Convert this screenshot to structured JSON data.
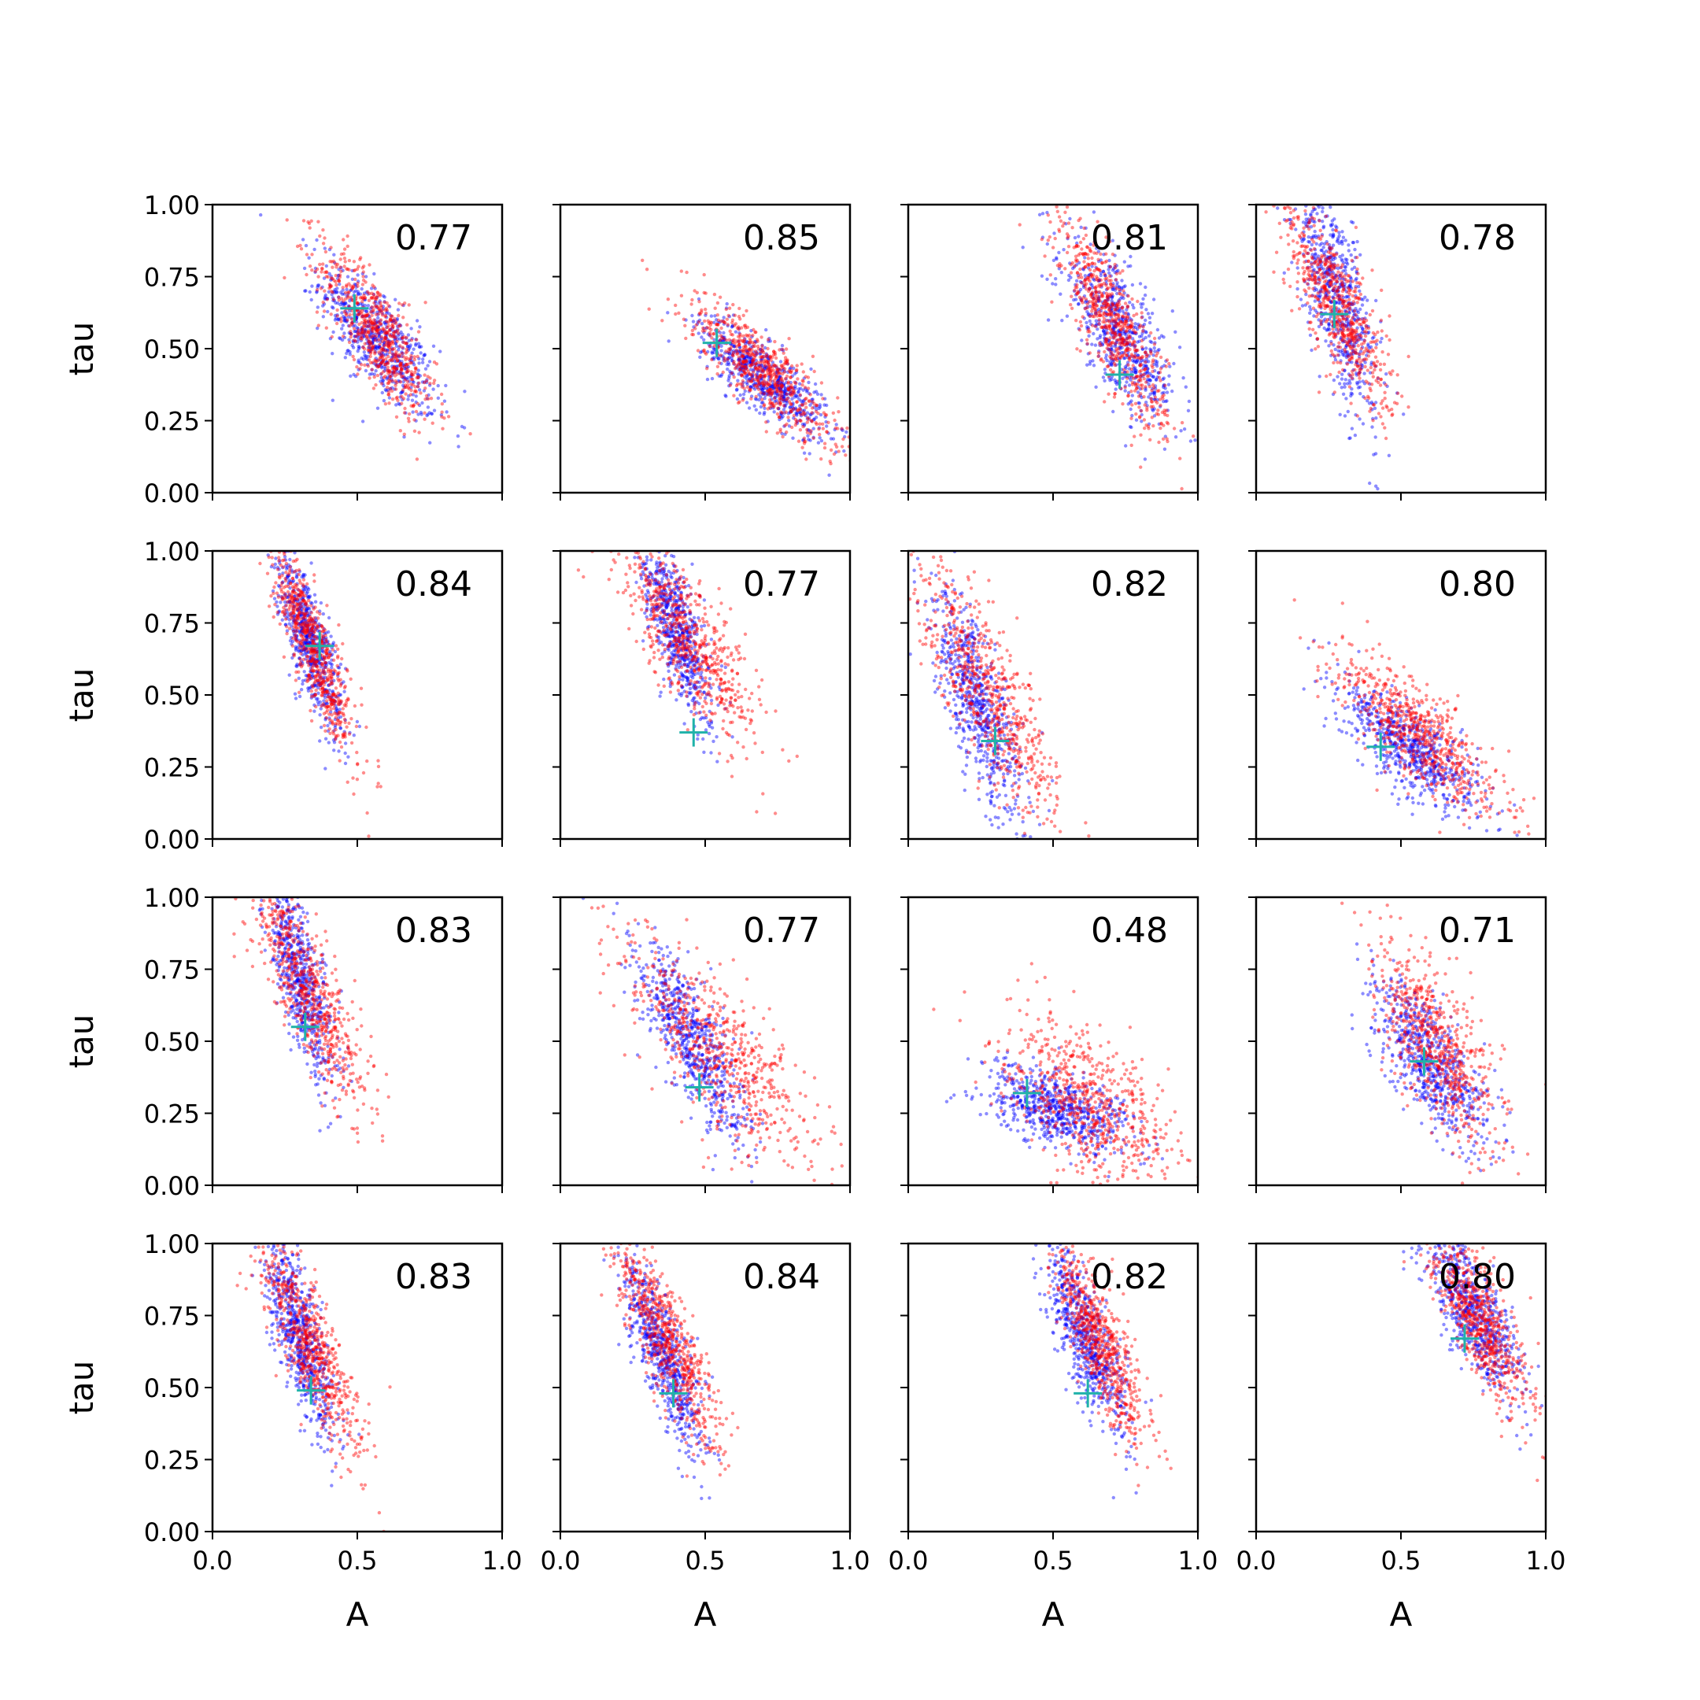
{
  "figure": {
    "x_label": "A",
    "y_label": "tau",
    "x_ticks": [
      "0.0",
      "0.5",
      "1.0"
    ],
    "y_ticks": [
      "0.00",
      "0.25",
      "0.50",
      "0.75",
      "1.00"
    ],
    "colors": {
      "red": "#ff0000",
      "blue": "#0000ff",
      "marker": "#20b2aa",
      "axis": "#000000"
    }
  },
  "chart_data": [
    {
      "type": "scatter",
      "annotation": "0.77",
      "xlim": [
        0,
        1
      ],
      "ylim": [
        0,
        1
      ],
      "marker": {
        "x": 0.49,
        "y": 0.64
      },
      "clouds": {
        "red": {
          "cx": 0.57,
          "cy": 0.55,
          "sx": 0.1,
          "sy": 0.15,
          "rho": -0.8
        },
        "blue": {
          "cx": 0.57,
          "cy": 0.53,
          "sx": 0.1,
          "sy": 0.13,
          "rho": -0.75
        }
      }
    },
    {
      "type": "scatter",
      "annotation": "0.85",
      "xlim": [
        0,
        1
      ],
      "ylim": [
        0,
        1
      ],
      "marker": {
        "x": 0.54,
        "y": 0.52
      },
      "clouds": {
        "red": {
          "cx": 0.7,
          "cy": 0.42,
          "sx": 0.13,
          "sy": 0.13,
          "rho": -0.85
        },
        "blue": {
          "cx": 0.7,
          "cy": 0.4,
          "sx": 0.11,
          "sy": 0.1,
          "rho": -0.8
        }
      }
    },
    {
      "type": "scatter",
      "annotation": "0.81",
      "xlim": [
        0,
        1
      ],
      "ylim": [
        0,
        1
      ],
      "marker": {
        "x": 0.73,
        "y": 0.41
      },
      "clouds": {
        "red": {
          "cx": 0.71,
          "cy": 0.58,
          "sx": 0.09,
          "sy": 0.17,
          "rho": -0.81
        },
        "blue": {
          "cx": 0.73,
          "cy": 0.55,
          "sx": 0.1,
          "sy": 0.16,
          "rho": -0.75
        }
      }
    },
    {
      "type": "scatter",
      "annotation": "0.78",
      "xlim": [
        0,
        1
      ],
      "ylim": [
        0,
        1
      ],
      "marker": {
        "x": 0.27,
        "y": 0.62
      },
      "clouds": {
        "red": {
          "cx": 0.28,
          "cy": 0.65,
          "sx": 0.09,
          "sy": 0.18,
          "rho": -0.78
        },
        "blue": {
          "cx": 0.28,
          "cy": 0.68,
          "sx": 0.07,
          "sy": 0.2,
          "rho": -0.7
        }
      }
    },
    {
      "type": "scatter",
      "annotation": "0.84",
      "xlim": [
        0,
        1
      ],
      "ylim": [
        0,
        1
      ],
      "marker": {
        "x": 0.37,
        "y": 0.67
      },
      "clouds": {
        "red": {
          "cx": 0.35,
          "cy": 0.66,
          "sx": 0.07,
          "sy": 0.17,
          "rho": -0.84
        },
        "blue": {
          "cx": 0.33,
          "cy": 0.7,
          "sx": 0.06,
          "sy": 0.16,
          "rho": -0.8
        }
      }
    },
    {
      "type": "scatter",
      "annotation": "0.77",
      "xlim": [
        0,
        1
      ],
      "ylim": [
        0,
        1
      ],
      "marker": {
        "x": 0.46,
        "y": 0.37
      },
      "clouds": {
        "red": {
          "cx": 0.45,
          "cy": 0.68,
          "sx": 0.12,
          "sy": 0.17,
          "rho": -0.77
        },
        "blue": {
          "cx": 0.4,
          "cy": 0.73,
          "sx": 0.06,
          "sy": 0.16,
          "rho": -0.75
        }
      }
    },
    {
      "type": "scatter",
      "annotation": "0.82",
      "xlim": [
        0,
        1
      ],
      "ylim": [
        0,
        1
      ],
      "marker": {
        "x": 0.3,
        "y": 0.34
      },
      "clouds": {
        "red": {
          "cx": 0.28,
          "cy": 0.5,
          "sx": 0.12,
          "sy": 0.22,
          "rho": -0.82
        },
        "blue": {
          "cx": 0.24,
          "cy": 0.46,
          "sx": 0.08,
          "sy": 0.2,
          "rho": -0.75
        }
      }
    },
    {
      "type": "scatter",
      "annotation": "0.80",
      "xlim": [
        0,
        1
      ],
      "ylim": [
        0,
        1
      ],
      "marker": {
        "x": 0.43,
        "y": 0.32
      },
      "clouds": {
        "red": {
          "cx": 0.57,
          "cy": 0.36,
          "sx": 0.14,
          "sy": 0.14,
          "rho": -0.8
        },
        "blue": {
          "cx": 0.54,
          "cy": 0.31,
          "sx": 0.12,
          "sy": 0.11,
          "rho": -0.75
        }
      }
    },
    {
      "type": "scatter",
      "annotation": "0.83",
      "xlim": [
        0,
        1
      ],
      "ylim": [
        0,
        1
      ],
      "marker": {
        "x": 0.32,
        "y": 0.55
      },
      "clouds": {
        "red": {
          "cx": 0.33,
          "cy": 0.68,
          "sx": 0.1,
          "sy": 0.2,
          "rho": -0.83
        },
        "blue": {
          "cx": 0.3,
          "cy": 0.72,
          "sx": 0.06,
          "sy": 0.18,
          "rho": -0.75
        }
      }
    },
    {
      "type": "scatter",
      "annotation": "0.77",
      "xlim": [
        0,
        1
      ],
      "ylim": [
        0,
        1
      ],
      "marker": {
        "x": 0.48,
        "y": 0.34
      },
      "clouds": {
        "red": {
          "cx": 0.56,
          "cy": 0.44,
          "sx": 0.17,
          "sy": 0.2,
          "rho": -0.77
        },
        "blue": {
          "cx": 0.45,
          "cy": 0.5,
          "sx": 0.1,
          "sy": 0.18,
          "rho": -0.8
        }
      }
    },
    {
      "type": "scatter",
      "annotation": "0.48",
      "xlim": [
        0,
        1
      ],
      "ylim": [
        0,
        1
      ],
      "marker": {
        "x": 0.41,
        "y": 0.32
      },
      "clouds": {
        "red": {
          "cx": 0.62,
          "cy": 0.29,
          "sx": 0.15,
          "sy": 0.14,
          "rho": -0.55
        },
        "blue": {
          "cx": 0.52,
          "cy": 0.26,
          "sx": 0.13,
          "sy": 0.07,
          "rho": -0.4
        }
      }
    },
    {
      "type": "scatter",
      "annotation": "0.71",
      "xlim": [
        0,
        1
      ],
      "ylim": [
        0,
        1
      ],
      "marker": {
        "x": 0.58,
        "y": 0.43
      },
      "clouds": {
        "red": {
          "cx": 0.63,
          "cy": 0.48,
          "sx": 0.11,
          "sy": 0.18,
          "rho": -0.71
        },
        "blue": {
          "cx": 0.6,
          "cy": 0.43,
          "sx": 0.1,
          "sy": 0.14,
          "rho": -0.7
        }
      }
    },
    {
      "type": "scatter",
      "annotation": "0.83",
      "xlim": [
        0,
        1
      ],
      "ylim": [
        0,
        1
      ],
      "marker": {
        "x": 0.34,
        "y": 0.49
      },
      "clouds": {
        "red": {
          "cx": 0.33,
          "cy": 0.66,
          "sx": 0.09,
          "sy": 0.19,
          "rho": -0.83
        },
        "blue": {
          "cx": 0.3,
          "cy": 0.68,
          "sx": 0.06,
          "sy": 0.17,
          "rho": -0.75
        }
      }
    },
    {
      "type": "scatter",
      "annotation": "0.84",
      "xlim": [
        0,
        1
      ],
      "ylim": [
        0,
        1
      ],
      "marker": {
        "x": 0.39,
        "y": 0.48
      },
      "clouds": {
        "red": {
          "cx": 0.37,
          "cy": 0.65,
          "sx": 0.09,
          "sy": 0.18,
          "rho": -0.84
        },
        "blue": {
          "cx": 0.35,
          "cy": 0.62,
          "sx": 0.07,
          "sy": 0.17,
          "rho": -0.8
        }
      }
    },
    {
      "type": "scatter",
      "annotation": "0.82",
      "xlim": [
        0,
        1
      ],
      "ylim": [
        0,
        1
      ],
      "marker": {
        "x": 0.62,
        "y": 0.48
      },
      "clouds": {
        "red": {
          "cx": 0.66,
          "cy": 0.66,
          "sx": 0.08,
          "sy": 0.17,
          "rho": -0.82
        },
        "blue": {
          "cx": 0.61,
          "cy": 0.67,
          "sx": 0.07,
          "sy": 0.17,
          "rho": -0.75
        }
      }
    },
    {
      "type": "scatter",
      "annotation": "0.80",
      "xlim": [
        0,
        1
      ],
      "ylim": [
        0,
        1
      ],
      "marker": {
        "x": 0.72,
        "y": 0.67
      },
      "clouds": {
        "red": {
          "cx": 0.77,
          "cy": 0.74,
          "sx": 0.09,
          "sy": 0.16,
          "rho": -0.8
        },
        "blue": {
          "cx": 0.75,
          "cy": 0.76,
          "sx": 0.08,
          "sy": 0.14,
          "rho": -0.75
        }
      }
    }
  ]
}
